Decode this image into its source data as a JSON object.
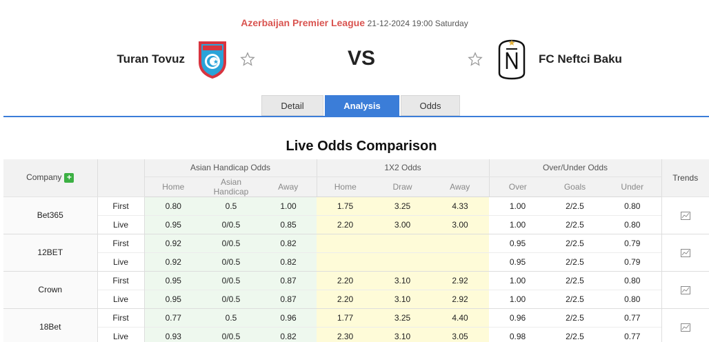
{
  "header": {
    "league": "Azerbaijan Premier League",
    "datetime": "21-12-2024 19:00 Saturday",
    "home_team": "Turan Tovuz",
    "away_team": "FC Neftci Baku",
    "vs": "VS"
  },
  "tabs": [
    {
      "label": "Detail",
      "active": false
    },
    {
      "label": "Analysis",
      "active": true
    },
    {
      "label": "Odds",
      "active": false
    }
  ],
  "section_title": "Live Odds Comparison",
  "table": {
    "company_header": "Company",
    "trends_header": "Trends",
    "groups": [
      "Asian Handicap Odds",
      "1X2 Odds",
      "Over/Under Odds"
    ],
    "subheaders": [
      "Home",
      "Asian Handicap",
      "Away",
      "Home",
      "Draw",
      "Away",
      "Over",
      "Goals",
      "Under"
    ],
    "rows": [
      {
        "company": "Bet365",
        "first": {
          "kind": "First",
          "ah": [
            "0.80",
            "0.5",
            "1.00"
          ],
          "x12": [
            "1.75",
            "3.25",
            "4.33"
          ],
          "ou": [
            "1.00",
            "2/2.5",
            "0.80"
          ]
        },
        "live": {
          "kind": "Live",
          "ah": [
            "0.95",
            "0/0.5",
            "0.85"
          ],
          "x12": [
            "2.20",
            "3.00",
            "3.00"
          ],
          "ou": [
            "1.00",
            "2/2.5",
            "0.80"
          ]
        }
      },
      {
        "company": "12BET",
        "first": {
          "kind": "First",
          "ah": [
            "0.92",
            "0/0.5",
            "0.82"
          ],
          "x12": [
            "",
            "",
            ""
          ],
          "ou": [
            "0.95",
            "2/2.5",
            "0.79"
          ]
        },
        "live": {
          "kind": "Live",
          "ah": [
            "0.92",
            "0/0.5",
            "0.82"
          ],
          "x12": [
            "",
            "",
            ""
          ],
          "ou": [
            "0.95",
            "2/2.5",
            "0.79"
          ]
        }
      },
      {
        "company": "Crown",
        "first": {
          "kind": "First",
          "ah": [
            "0.95",
            "0/0.5",
            "0.87"
          ],
          "x12": [
            "2.20",
            "3.10",
            "2.92"
          ],
          "ou": [
            "1.00",
            "2/2.5",
            "0.80"
          ]
        },
        "live": {
          "kind": "Live",
          "ah": [
            "0.95",
            "0/0.5",
            "0.87"
          ],
          "x12": [
            "2.20",
            "3.10",
            "2.92"
          ],
          "ou": [
            "1.00",
            "2/2.5",
            "0.80"
          ]
        }
      },
      {
        "company": "18Bet",
        "first": {
          "kind": "First",
          "ah": [
            "0.77",
            "0.5",
            "0.96"
          ],
          "x12": [
            "1.77",
            "3.25",
            "4.40"
          ],
          "ou": [
            "0.96",
            "2/2.5",
            "0.77"
          ]
        },
        "live": {
          "kind": "Live",
          "ah": [
            "0.93",
            "0/0.5",
            "0.82"
          ],
          "x12": [
            "2.30",
            "3.10",
            "3.05"
          ],
          "ou": [
            "0.98",
            "2/2.5",
            "0.77"
          ]
        }
      }
    ]
  },
  "icons": {
    "home_logo": "turan-tovuz-crest-icon",
    "away_logo": "neftci-baku-crest-icon",
    "favorite": "star-outline-icon",
    "add": "plus-icon",
    "trend": "chart-icon"
  },
  "colors": {
    "league": "#d9534f",
    "tab_active": "#3b7dd8",
    "ah_bg": "#eef8ee",
    "x12_bg": "#fefbd8",
    "plus": "#3cb043"
  }
}
